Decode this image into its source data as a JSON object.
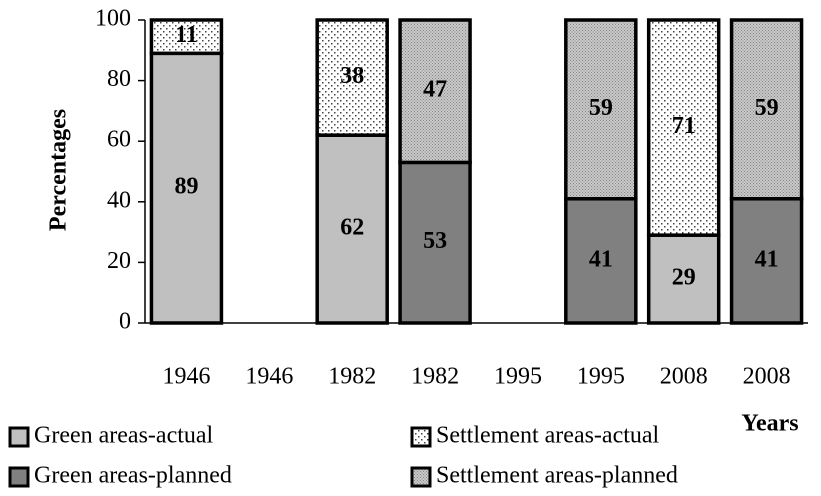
{
  "chart_data": {
    "type": "bar",
    "stacked": true,
    "xlabel": "Years",
    "ylabel": "Percentages",
    "categories": [
      "1946",
      "1946",
      "1982",
      "1982",
      "1995",
      "1995",
      "2008",
      "2008"
    ],
    "series": [
      {
        "name": "Green areas-actual",
        "color": "#c0c0c0",
        "values": [
          89,
          null,
          62,
          null,
          null,
          null,
          29,
          null
        ]
      },
      {
        "name": "Settlement areas-actual",
        "color": "#ffffff",
        "pattern": "dots",
        "values": [
          11,
          null,
          38,
          null,
          null,
          null,
          71,
          null
        ]
      },
      {
        "name": "Green areas-planned",
        "color": "#808080",
        "values": [
          null,
          null,
          null,
          53,
          null,
          41,
          null,
          41
        ]
      },
      {
        "name": "Settlement areas-planned",
        "color": "#b4b4b4",
        "pattern": "fine",
        "values": [
          null,
          null,
          null,
          47,
          null,
          59,
          null,
          59
        ]
      }
    ],
    "ylim": [
      0,
      100
    ],
    "yticks": [
      0,
      20,
      40,
      60,
      80,
      100
    ],
    "grid": false,
    "legend": "bottom"
  }
}
